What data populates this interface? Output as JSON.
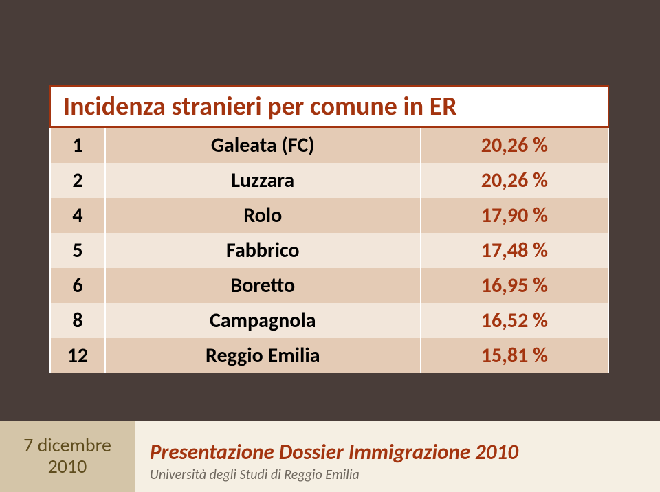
{
  "slide": {
    "background_color": "#493d39"
  },
  "table": {
    "title": "Incidenza stranieri per comune in ER",
    "title_color": "#a3340f",
    "title_fontsize": 38,
    "header_bg": "#ffffff",
    "header_border": "#a3340f",
    "rank_col_width": 80,
    "name_col_width": 460,
    "val_col_width": 274,
    "row_odd_bg": "#e4cbb5",
    "row_even_bg": "#f2e6da",
    "cell_fontsize": 30,
    "value_color": "#a3340f",
    "rows": [
      {
        "rank": "1",
        "name": "Galeata (FC)",
        "value": "20,26 %"
      },
      {
        "rank": "2",
        "name": "Luzzara",
        "value": "20,26 %"
      },
      {
        "rank": "4",
        "name": "Rolo",
        "value": "17,90 %"
      },
      {
        "rank": "5",
        "name": "Fabbrico",
        "value": "17,48 %"
      },
      {
        "rank": "6",
        "name": "Boretto",
        "value": "16,95 %"
      },
      {
        "rank": "8",
        "name": "Campagnola",
        "value": "16,52 %"
      },
      {
        "rank": "12",
        "name": "Reggio Emilia",
        "value": "15,81 %"
      }
    ]
  },
  "footer": {
    "date_line1": "7 dicembre",
    "date_line2": "2010",
    "date_bg": "#d4c5a8",
    "date_color": "#5f4d1e",
    "right_bg": "#f5efe3",
    "title": "Presentazione Dossier Immigrazione 2010",
    "title_color": "#a3340f",
    "title_fontsize": 31,
    "subtitle": "Università degli Studi di Reggio Emilia",
    "subtitle_color": "#6f685f",
    "subtitle_fontsize": 20
  }
}
